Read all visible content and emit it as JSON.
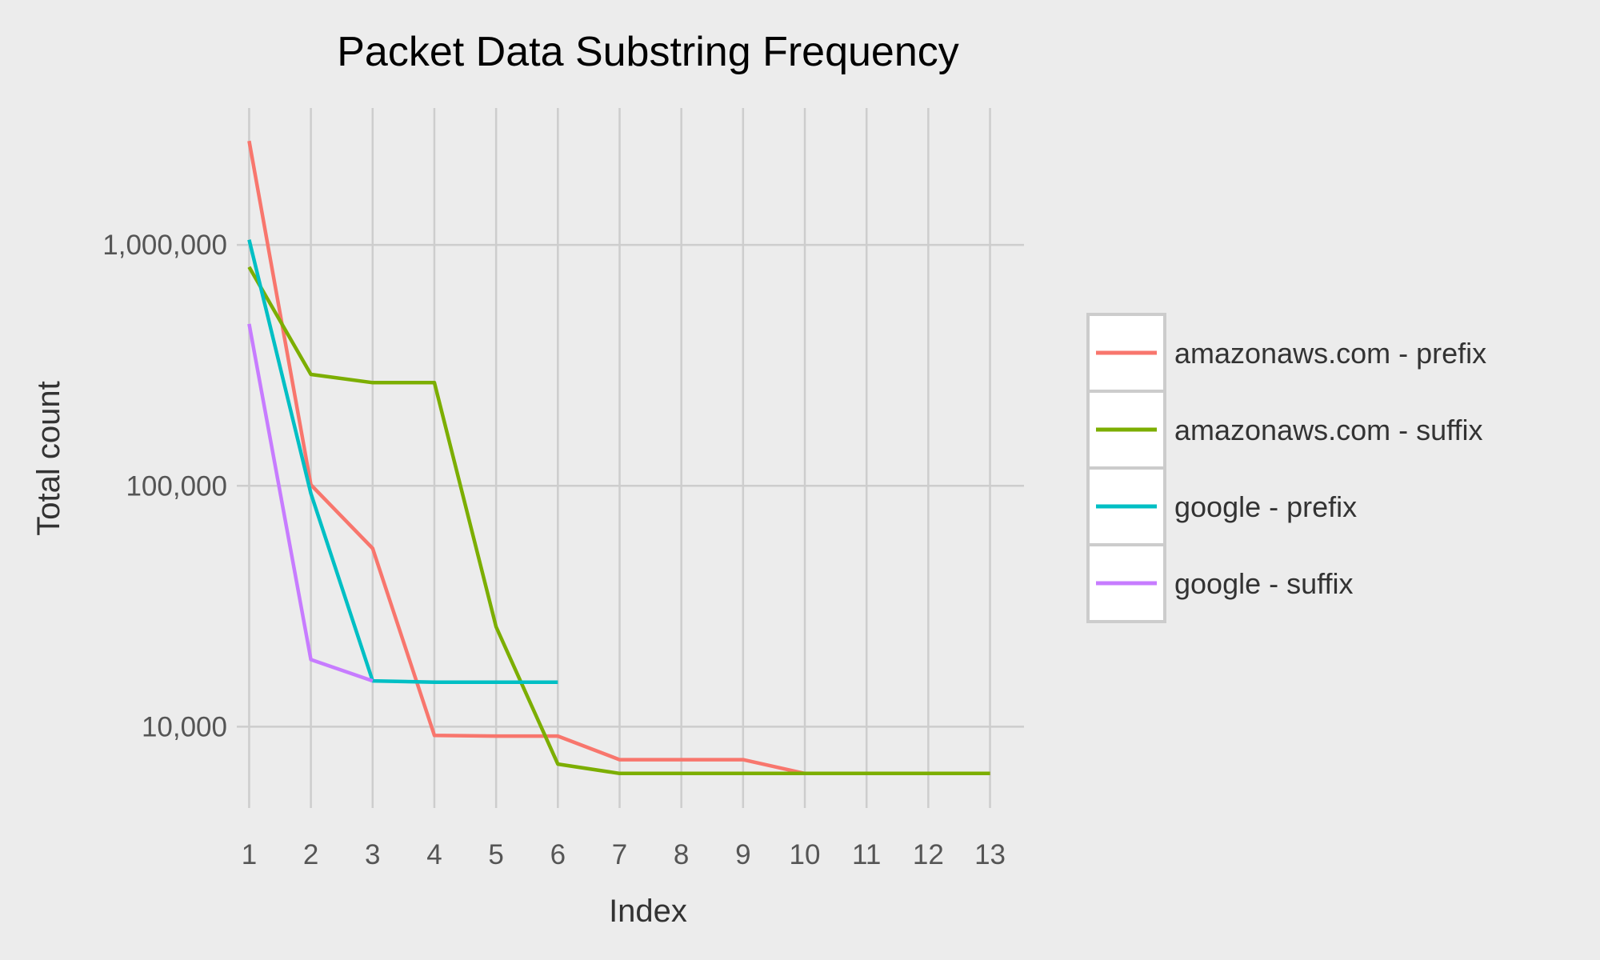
{
  "chart_data": {
    "type": "line",
    "title": "Packet Data Substring Frequency",
    "xlabel": "Index",
    "ylabel": "Total count",
    "y_scale": "log",
    "x": [
      1,
      2,
      3,
      4,
      5,
      6,
      7,
      8,
      9,
      10,
      11,
      12,
      13
    ],
    "x_tick_labels": [
      "1",
      "2",
      "3",
      "4",
      "5",
      "6",
      "7",
      "8",
      "9",
      "10",
      "11",
      "12",
      "13"
    ],
    "y_ticks": [
      10000,
      100000,
      1000000
    ],
    "y_tick_labels": [
      "10,000",
      "100,000",
      "1,000,000"
    ],
    "xlim": [
      0.8,
      13.55
    ],
    "ylim": [
      4600,
      3700000
    ],
    "grid": true,
    "legend_position": "right",
    "series": [
      {
        "name": "amazonaws.com - prefix",
        "color": "#F8766D",
        "x": [
          1,
          2,
          3,
          4,
          5,
          6,
          7,
          8,
          9,
          10,
          11,
          12,
          13
        ],
        "values": [
          2700000,
          101000,
          55000,
          9200,
          9150,
          9150,
          7300,
          7300,
          7300,
          6400,
          6400,
          6400,
          6400
        ]
      },
      {
        "name": "amazonaws.com - suffix",
        "color": "#7CAE00",
        "x": [
          1,
          2,
          3,
          4,
          5,
          6,
          7,
          8,
          9,
          10,
          11,
          12,
          13
        ],
        "values": [
          810000,
          290000,
          268000,
          268000,
          26000,
          7000,
          6400,
          6400,
          6400,
          6400,
          6400,
          6400,
          6400
        ]
      },
      {
        "name": "google - prefix",
        "color": "#00BFC4",
        "x": [
          1,
          2,
          3,
          4,
          5,
          6
        ],
        "values": [
          1050000,
          93000,
          15500,
          15300,
          15300,
          15300
        ]
      },
      {
        "name": "google - suffix",
        "color": "#C77CFF",
        "x": [
          1,
          2,
          3
        ],
        "values": [
          470000,
          19000,
          15500
        ]
      }
    ]
  }
}
